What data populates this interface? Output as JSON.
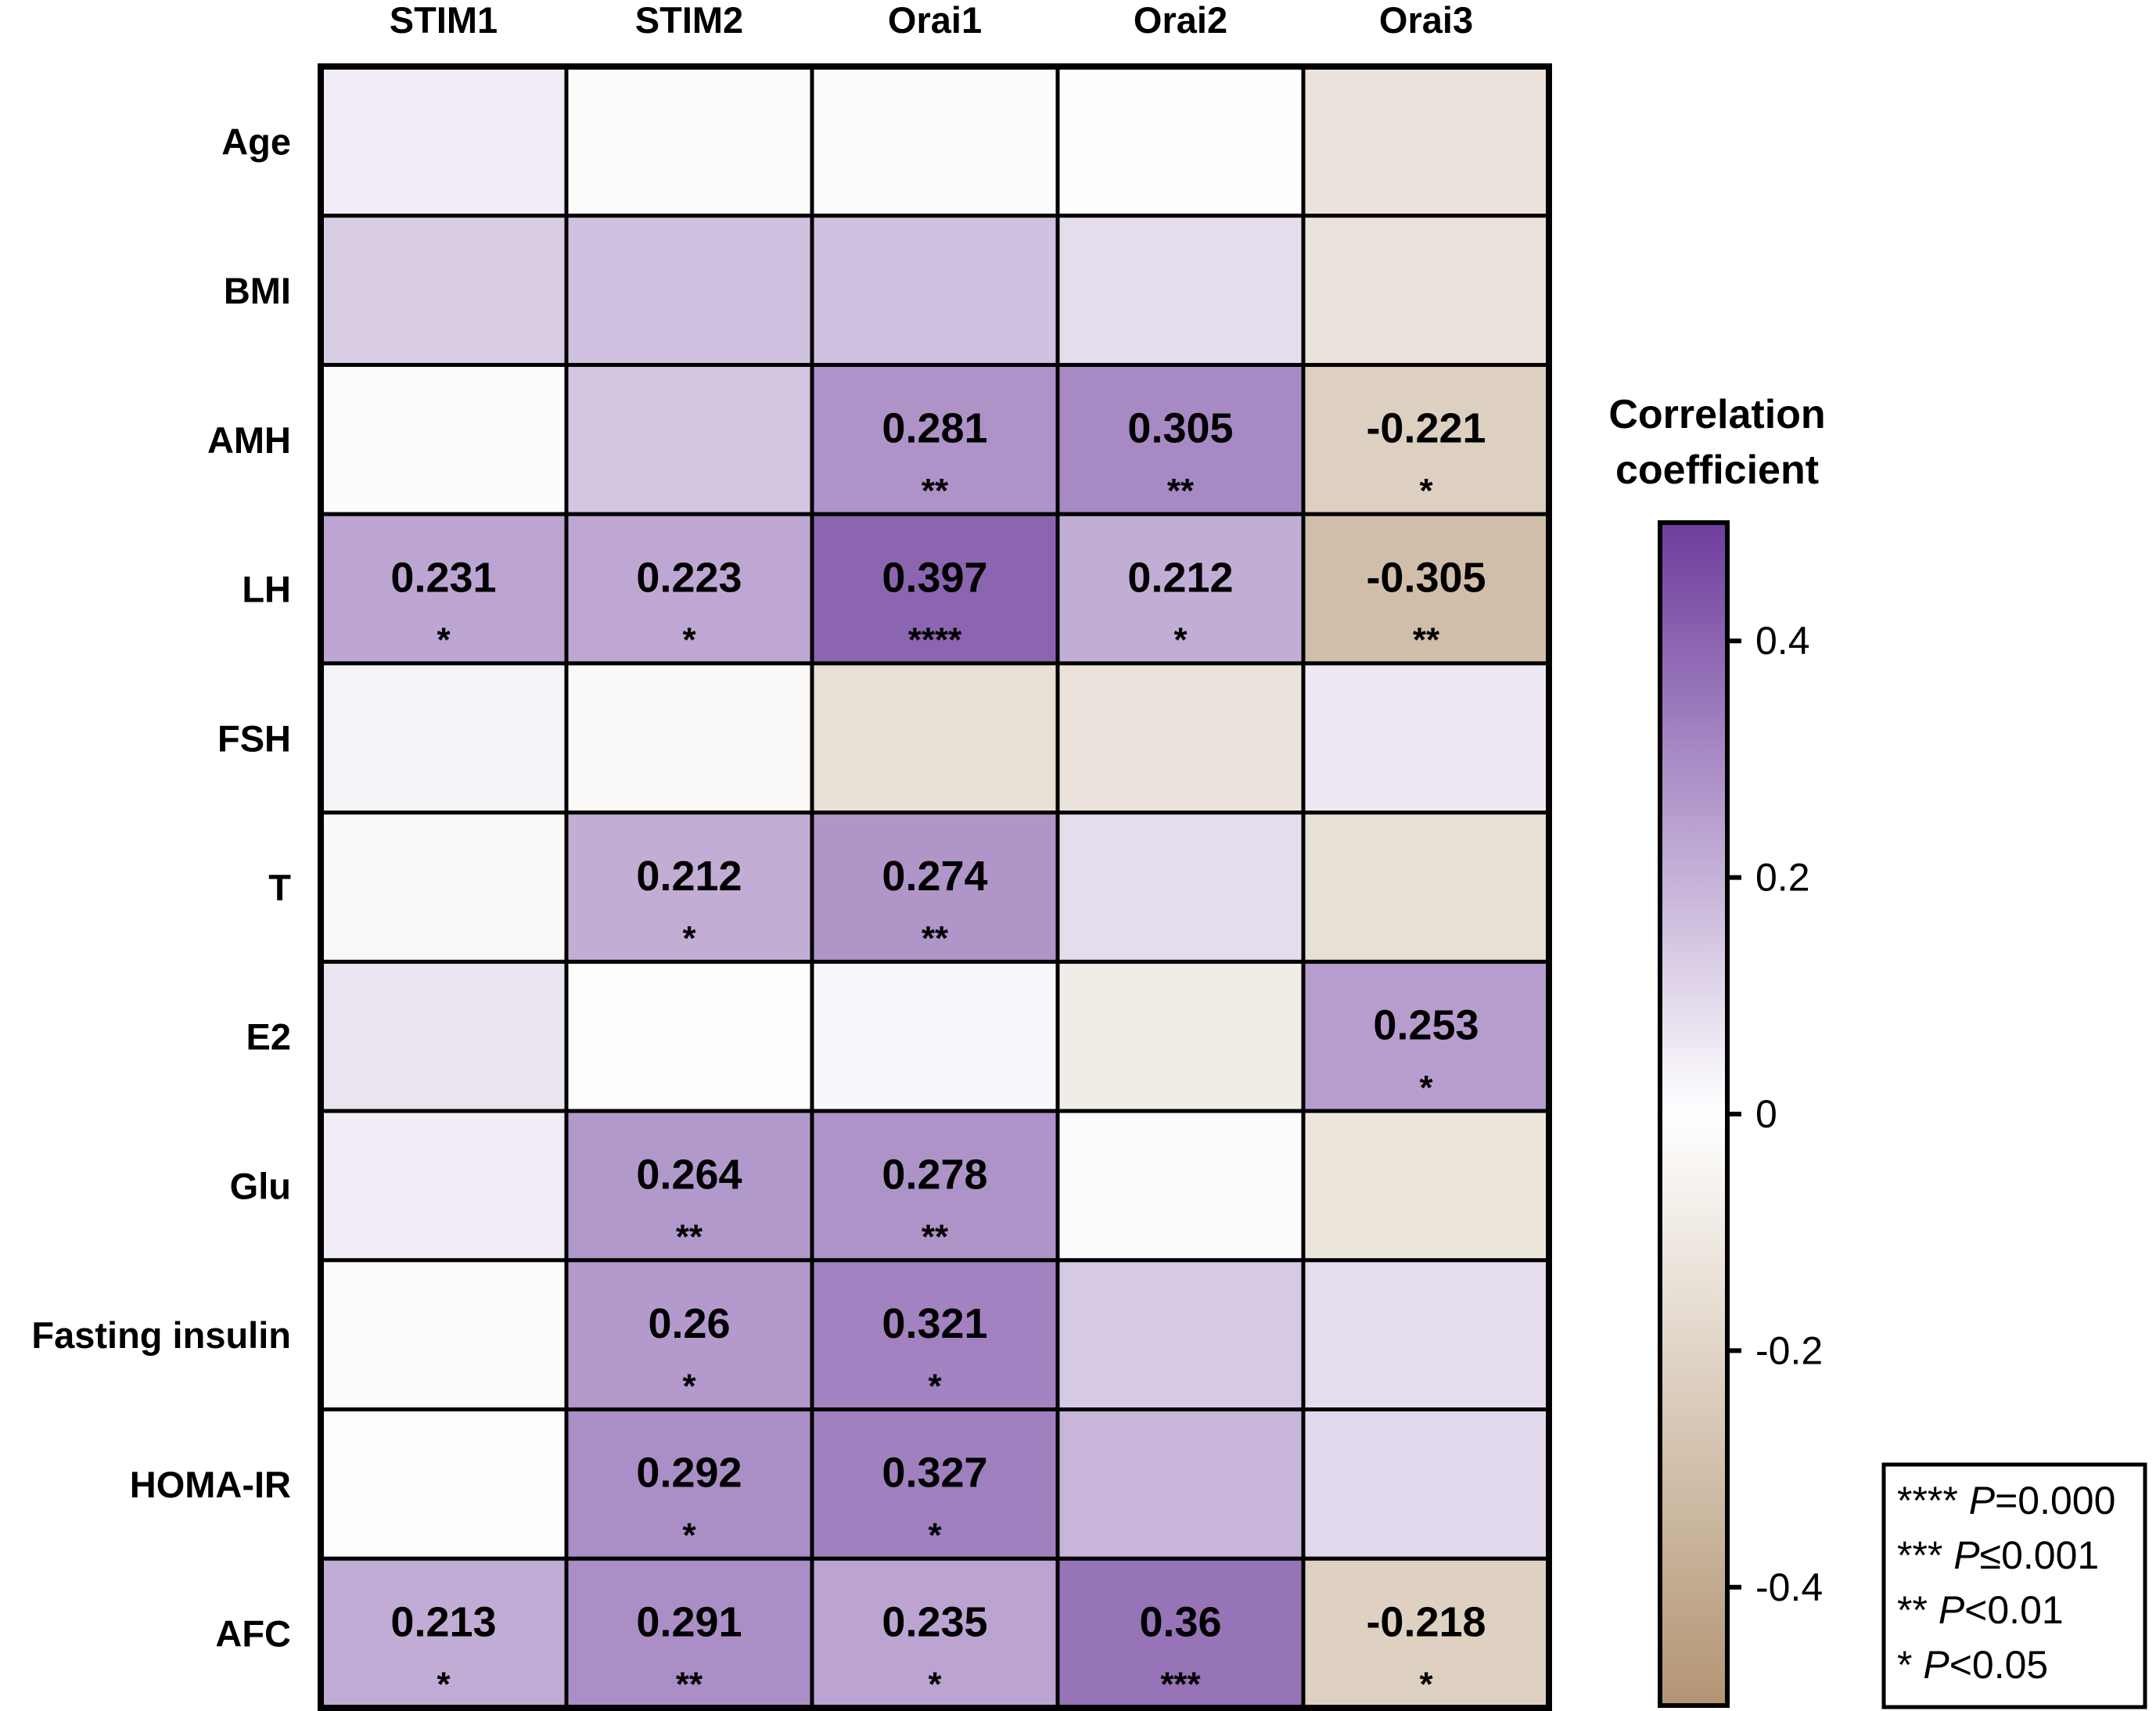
{
  "chart_data": {
    "type": "heatmap",
    "title": "",
    "columns": [
      "STIM1",
      "STIM2",
      "Orai1",
      "Orai2",
      "Orai3"
    ],
    "rows": [
      "Age",
      "BMI",
      "AMH",
      "LH",
      "FSH",
      "T",
      "E2",
      "Glu",
      "Fasting insulin",
      "HOMA-IR",
      "AFC"
    ],
    "values": [
      [
        0.05,
        -0.02,
        0.01,
        -0.005,
        -0.13
      ],
      [
        0.13,
        0.16,
        0.16,
        0.09,
        -0.13
      ],
      [
        0.01,
        0.15,
        0.281,
        0.305,
        -0.221
      ],
      [
        0.231,
        0.223,
        0.397,
        0.212,
        -0.305
      ],
      [
        0.03,
        -0.03,
        -0.15,
        -0.13,
        0.06
      ],
      [
        -0.03,
        0.212,
        0.274,
        0.09,
        -0.15
      ],
      [
        0.07,
        0.005,
        0.02,
        -0.09,
        0.253
      ],
      [
        0.05,
        0.264,
        0.278,
        0.01,
        -0.12
      ],
      [
        -0.015,
        0.26,
        0.321,
        0.14,
        0.09
      ],
      [
        -0.005,
        0.292,
        0.327,
        0.19,
        0.1
      ],
      [
        0.213,
        0.291,
        0.235,
        0.36,
        -0.218
      ]
    ],
    "annotations": [
      [
        null,
        null,
        null,
        null,
        null
      ],
      [
        null,
        null,
        null,
        null,
        null
      ],
      [
        null,
        null,
        {
          "value": "0.281",
          "sig": "**"
        },
        {
          "value": "0.305",
          "sig": "**"
        },
        {
          "value": "-0.221",
          "sig": "*"
        }
      ],
      [
        {
          "value": "0.231",
          "sig": "*"
        },
        {
          "value": "0.223",
          "sig": "*"
        },
        {
          "value": "0.397",
          "sig": "****"
        },
        {
          "value": "0.212",
          "sig": "*"
        },
        {
          "value": "-0.305",
          "sig": "**"
        }
      ],
      [
        null,
        null,
        null,
        null,
        null
      ],
      [
        null,
        {
          "value": "0.212",
          "sig": "*"
        },
        {
          "value": "0.274",
          "sig": "**"
        },
        null,
        null
      ],
      [
        null,
        null,
        null,
        null,
        {
          "value": "0.253",
          "sig": "*"
        }
      ],
      [
        null,
        {
          "value": "0.264",
          "sig": "**"
        },
        {
          "value": "0.278",
          "sig": "**"
        },
        null,
        null
      ],
      [
        null,
        {
          "value": "0.26",
          "sig": "*"
        },
        {
          "value": "0.321",
          "sig": "*"
        },
        null,
        null
      ],
      [
        null,
        {
          "value": "0.292",
          "sig": "*"
        },
        {
          "value": "0.327",
          "sig": "*"
        },
        null,
        null
      ],
      [
        {
          "value": "0.213",
          "sig": "*"
        },
        {
          "value": "0.291",
          "sig": "**"
        },
        {
          "value": "0.235",
          "sig": "*"
        },
        {
          "value": "0.36",
          "sig": "***"
        },
        {
          "value": "-0.218",
          "sig": "*"
        }
      ]
    ],
    "colorbar": {
      "title_lines": [
        "Correlation",
        "coefficient"
      ],
      "range": [
        -0.5,
        0.5
      ],
      "ticks": [
        0.4,
        0.2,
        0,
        -0.2,
        -0.4
      ],
      "tick_labels": [
        "0.4",
        "0.2",
        "0",
        "-0.2",
        "-0.4"
      ],
      "colors": {
        "positive": "#6e3d9d",
        "zero": "#ffffff",
        "negative": "#b39573"
      }
    },
    "legend": [
      {
        "stars": "****",
        "p": "P",
        "rel": "=0.000"
      },
      {
        "stars": "***",
        "p": "P",
        "rel": "≤0.001"
      },
      {
        "stars": "**",
        "p": "P",
        "rel": "<0.01"
      },
      {
        "stars": "*",
        "p": "P",
        "rel": "<0.05"
      }
    ]
  }
}
